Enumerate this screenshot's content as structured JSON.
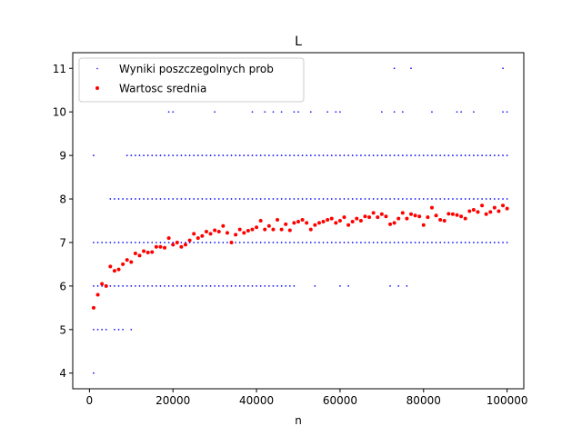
{
  "chart_data": {
    "type": "scatter",
    "title": "L",
    "xlabel": "n",
    "ylabel": "",
    "xlim": [
      -4000,
      104000
    ],
    "ylim": [
      3.64,
      11.36
    ],
    "x_ticks": [
      0,
      20000,
      40000,
      60000,
      80000,
      100000
    ],
    "x_tick_labels": [
      "0",
      "20000",
      "40000",
      "60000",
      "80000",
      "100000"
    ],
    "y_ticks": [
      4,
      5,
      6,
      7,
      8,
      9,
      10,
      11
    ],
    "y_tick_labels": [
      "4",
      "5",
      "6",
      "7",
      "8",
      "9",
      "10",
      "11"
    ],
    "grid": false,
    "legend_position": "upper-left",
    "legend": [
      {
        "label": "Wyniki poszczegolnych prob",
        "color": "#0000ff",
        "marker": "tiny-dot"
      },
      {
        "label": "Wartosc srednia",
        "color": "#ff0000",
        "marker": "dot"
      }
    ],
    "series": [
      {
        "name": "Wyniki poszczegolnych prob",
        "color": "#0000ff",
        "description": "individual trial results at n = 1000, 2000, ..., 100000; integer values 4–11",
        "levels": [
          {
            "y": 4,
            "x": [
              1000
            ]
          },
          {
            "y": 5,
            "x": [
              1000,
              2000,
              3000,
              4000,
              6000,
              7000,
              8000,
              10000
            ]
          },
          {
            "y": 6,
            "x_range": [
              1000,
              49000
            ],
            "x_extra": [
              54000,
              60000,
              62000,
              72000,
              74000,
              76000
            ]
          },
          {
            "y": 7,
            "x_range": [
              1000,
              100000
            ]
          },
          {
            "y": 8,
            "x_range": [
              5000,
              100000
            ]
          },
          {
            "y": 9,
            "x_range": [
              9000,
              100000
            ],
            "x_extra": [
              1000
            ]
          },
          {
            "y": 10,
            "x": [
              19000,
              20000,
              30000,
              39000,
              42000,
              44000,
              46000,
              49000,
              50000,
              53000,
              57000,
              59000,
              60000,
              70000,
              73000,
              75000,
              82000,
              88000,
              89000,
              92000,
              99000,
              100000
            ]
          },
          {
            "y": 11,
            "x": [
              73000,
              77000,
              99000
            ]
          }
        ]
      },
      {
        "name": "Wartosc srednia",
        "color": "#ff0000",
        "x_start": 1000,
        "x_step": 1000,
        "y": [
          5.5,
          5.8,
          6.05,
          6.0,
          6.45,
          6.35,
          6.38,
          6.5,
          6.6,
          6.55,
          6.75,
          6.7,
          6.8,
          6.77,
          6.78,
          6.9,
          6.9,
          6.88,
          7.1,
          6.95,
          7.0,
          6.9,
          6.95,
          7.05,
          7.2,
          7.1,
          7.15,
          7.25,
          7.2,
          7.28,
          7.25,
          7.38,
          7.22,
          7.0,
          7.18,
          7.3,
          7.22,
          7.27,
          7.3,
          7.35,
          7.5,
          7.3,
          7.38,
          7.3,
          7.52,
          7.3,
          7.42,
          7.28,
          7.45,
          7.48,
          7.52,
          7.45,
          7.3,
          7.4,
          7.45,
          7.48,
          7.52,
          7.55,
          7.45,
          7.5,
          7.58,
          7.4,
          7.48,
          7.55,
          7.5,
          7.6,
          7.58,
          7.68,
          7.58,
          7.65,
          7.6,
          7.42,
          7.45,
          7.55,
          7.68,
          7.55,
          7.65,
          7.62,
          7.6,
          7.4,
          7.58,
          7.8,
          7.62,
          7.52,
          7.5,
          7.66,
          7.65,
          7.63,
          7.6,
          7.55,
          7.72,
          7.75,
          7.7,
          7.85,
          7.65,
          7.7,
          7.8,
          7.72,
          7.85,
          7.78
        ]
      }
    ]
  }
}
